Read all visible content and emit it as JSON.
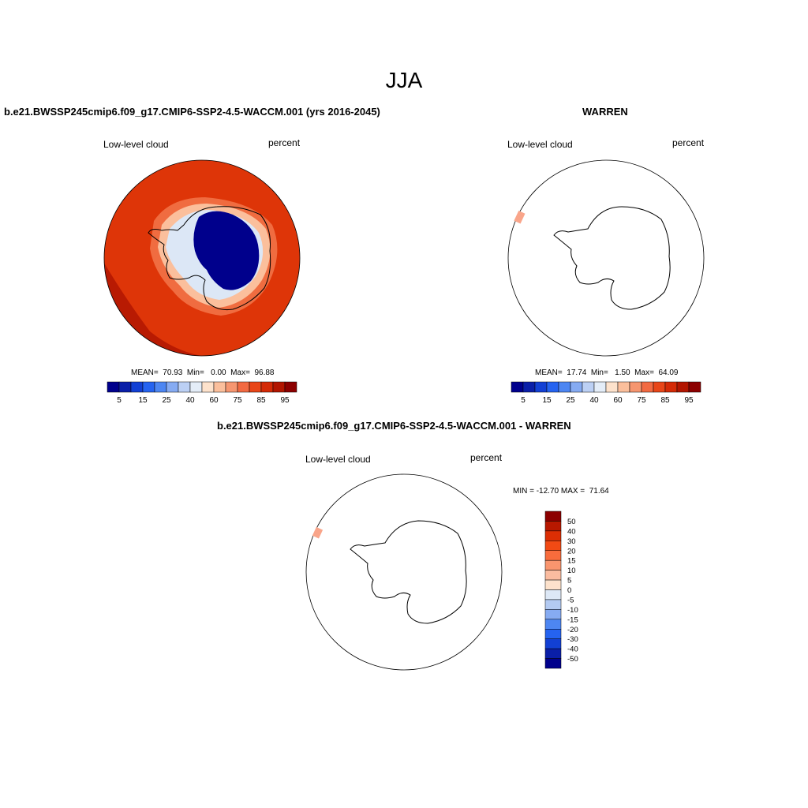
{
  "figure": {
    "title": "JJA"
  },
  "panels": {
    "model": {
      "title": "b.e21.BWSSP245cmip6.f09_g17.CMIP6-SSP2-4.5-WACCM.001 (yrs 2016-2045)",
      "variable": "Low-level cloud",
      "units": "percent",
      "stats": "MEAN=  70.93  Min=   0.00  Max=  96.88"
    },
    "obs": {
      "title": "WARREN",
      "variable": "Low-level cloud",
      "units": "percent",
      "stats": "MEAN=  17.74  Min=   1.50  Max=  64.09"
    },
    "diff": {
      "title": "b.e21.BWSSP245cmip6.f09_g17.CMIP6-SSP2-4.5-WACCM.001 - WARREN",
      "variable": "Low-level cloud",
      "units": "percent",
      "stats": "MIN = -12.70 MAX =  71.64"
    }
  },
  "colorbar_main": {
    "colors": [
      "#00008c",
      "#0a1fa8",
      "#1240d4",
      "#2563f0",
      "#4d86f2",
      "#86abf2",
      "#bcd0f4",
      "#e4edf8",
      "#fde2cc",
      "#fbbf9c",
      "#f69670",
      "#f26a42",
      "#e84618",
      "#d42a06",
      "#b21500",
      "#8c0000"
    ],
    "labels": [
      "5",
      "15",
      "25",
      "40",
      "60",
      "75",
      "85",
      "95"
    ]
  },
  "colorbar_diff": {
    "colors": [
      "#8c0000",
      "#b81800",
      "#dc2e04",
      "#f24a14",
      "#f86c3c",
      "#f9956e",
      "#fbbca0",
      "#fde2cc",
      "#dde8f6",
      "#b3caf2",
      "#86abf2",
      "#4d86f2",
      "#2563f0",
      "#1240d4",
      "#0a1fa8",
      "#00008c"
    ],
    "labels": [
      "50",
      "40",
      "30",
      "20",
      "15",
      "10",
      "5",
      "0",
      "-5",
      "-10",
      "-15",
      "-20",
      "-30",
      "-40",
      "-50"
    ]
  },
  "map_colors": {
    "ocean_high": "#b81a02",
    "ocean_mid": "#de3508",
    "ocean_low": "#f06c40",
    "ice_edge": "#fbbf9c",
    "sea_ice": "#dce7f6",
    "interior": "#00008c",
    "coast": "#000000"
  },
  "obs_patch_color": "#f9a58a"
}
